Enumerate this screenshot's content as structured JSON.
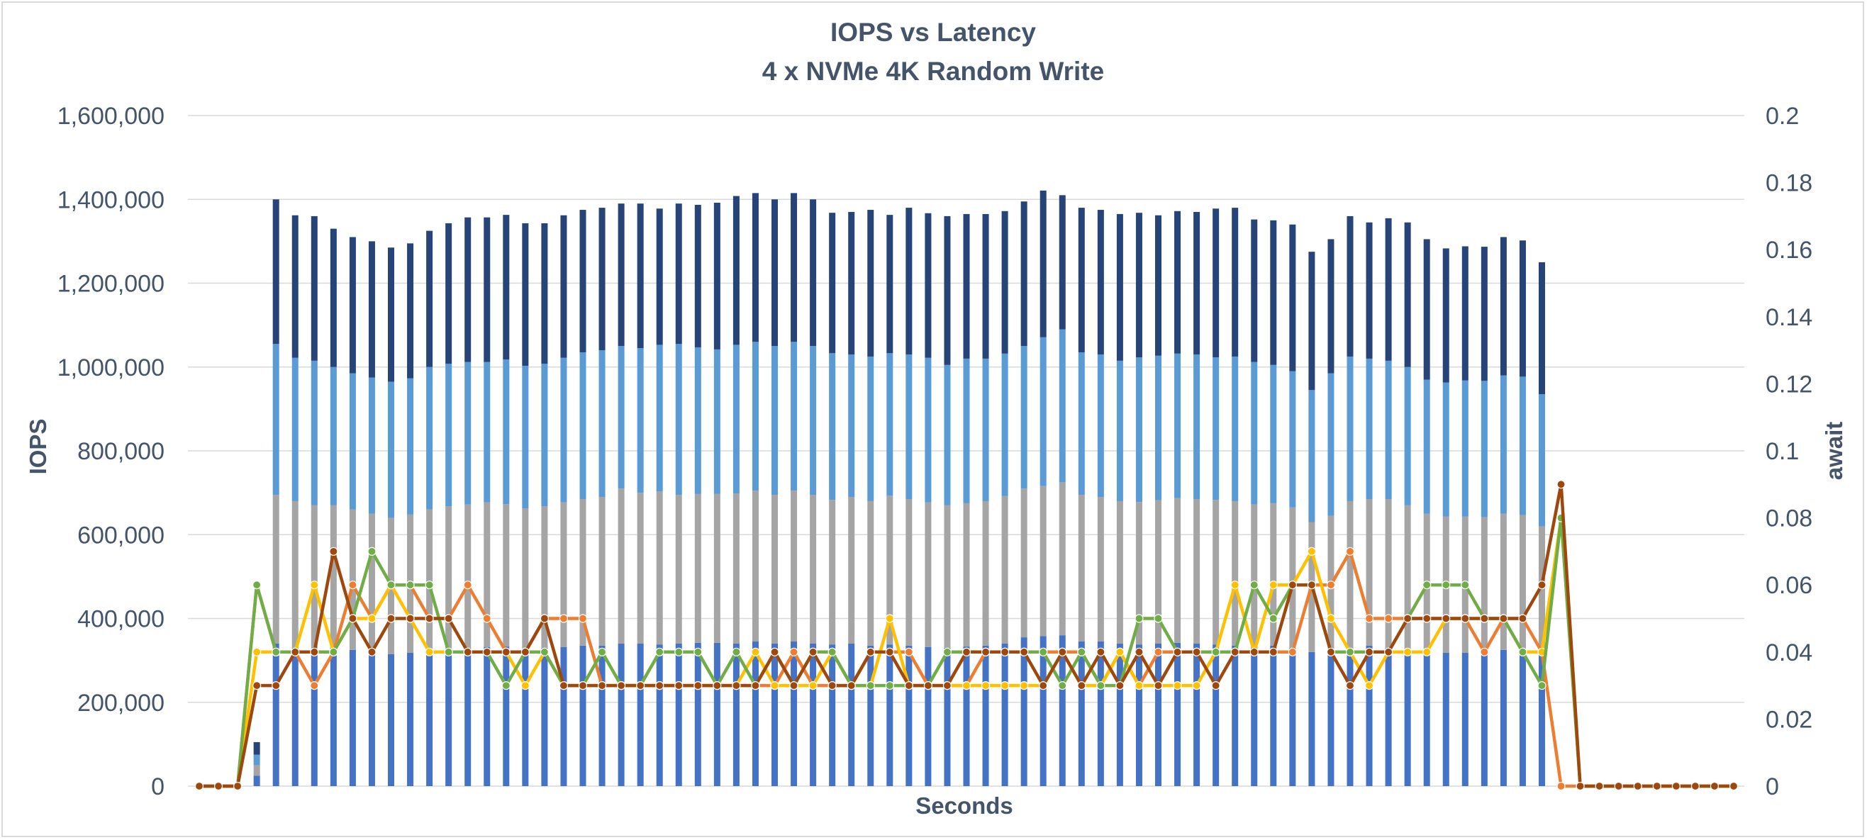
{
  "chart_data": {
    "type": "bar",
    "title": "IOPS vs Latency",
    "subtitle": "4 x NVMe 4K Random Write",
    "xlabel": "Seconds",
    "ylabel": "IOPS",
    "y2label": "await",
    "ylim": [
      0,
      1600000
    ],
    "y2lim": [
      0,
      0.2
    ],
    "yticks": [
      "0",
      "200,000",
      "400,000",
      "600,000",
      "800,000",
      "1,000,000",
      "1,200,000",
      "1,400,000",
      "1,600,000"
    ],
    "y2ticks": [
      "0",
      "0.02",
      "0.04",
      "0.06",
      "0.08",
      "0.1",
      "0.12",
      "0.14",
      "0.16",
      "0.18",
      "0.2"
    ],
    "grid": true,
    "legend": "none",
    "stacked_bars": {
      "series": [
        {
          "color": "#4472c4",
          "values": [
            0,
            0,
            0,
            25000,
            340000,
            330000,
            325000,
            330000,
            325000,
            320000,
            315000,
            318000,
            322000,
            328000,
            330000,
            332000,
            333000,
            328000,
            330000,
            332000,
            335000,
            335000,
            340000,
            340000,
            338000,
            340000,
            342000,
            342000,
            340000,
            345000,
            340000,
            345000,
            340000,
            338000,
            340000,
            335000,
            338000,
            335000,
            332000,
            330000,
            333000,
            335000,
            340000,
            355000,
            358000,
            360000,
            345000,
            345000,
            340000,
            338000,
            340000,
            342000,
            340000,
            338000,
            335000,
            332000,
            335000,
            330000,
            320000,
            315000,
            325000,
            335000,
            330000,
            325000,
            320000,
            318000,
            318000,
            320000,
            325000,
            322000,
            315000,
            0,
            0,
            0,
            0,
            0,
            0,
            0,
            0,
            0,
            0
          ]
        },
        {
          "color": "#a5a5a5",
          "values": [
            0,
            0,
            0,
            25000,
            355000,
            350000,
            345000,
            340000,
            335000,
            330000,
            325000,
            330000,
            338000,
            340000,
            342000,
            345000,
            340000,
            335000,
            338000,
            345000,
            350000,
            355000,
            370000,
            360000,
            365000,
            355000,
            355000,
            355000,
            358000,
            360000,
            355000,
            360000,
            355000,
            345000,
            350000,
            345000,
            355000,
            350000,
            345000,
            340000,
            342000,
            345000,
            352000,
            355000,
            358000,
            365000,
            350000,
            345000,
            340000,
            340000,
            342000,
            345000,
            345000,
            345000,
            345000,
            340000,
            340000,
            335000,
            310000,
            330000,
            355000,
            350000,
            355000,
            345000,
            330000,
            325000,
            325000,
            322000,
            325000,
            325000,
            305000,
            0,
            0,
            0,
            0,
            0,
            0,
            0,
            0,
            0,
            0
          ]
        },
        {
          "color": "#5b9bd5",
          "values": [
            0,
            0,
            0,
            25000,
            360000,
            342000,
            345000,
            330000,
            325000,
            325000,
            325000,
            325000,
            340000,
            340000,
            340000,
            335000,
            345000,
            340000,
            340000,
            345000,
            350000,
            350000,
            340000,
            345000,
            350000,
            360000,
            350000,
            345000,
            355000,
            355000,
            355000,
            355000,
            355000,
            350000,
            340000,
            345000,
            340000,
            345000,
            345000,
            335000,
            345000,
            340000,
            340000,
            340000,
            355000,
            365000,
            340000,
            340000,
            335000,
            345000,
            345000,
            345000,
            345000,
            340000,
            345000,
            340000,
            330000,
            325000,
            315000,
            340000,
            345000,
            335000,
            330000,
            330000,
            320000,
            320000,
            325000,
            325000,
            330000,
            330000,
            315000,
            0,
            0,
            0,
            0,
            0,
            0,
            0,
            0,
            0,
            0
          ]
        },
        {
          "color": "#264478",
          "values": [
            0,
            0,
            0,
            30000,
            345000,
            340000,
            345000,
            330000,
            325000,
            325000,
            320000,
            322000,
            325000,
            335000,
            345000,
            345000,
            345000,
            340000,
            335000,
            340000,
            340000,
            340000,
            340000,
            345000,
            325000,
            335000,
            340000,
            350000,
            355000,
            355000,
            350000,
            355000,
            350000,
            335000,
            340000,
            350000,
            330000,
            350000,
            345000,
            355000,
            345000,
            345000,
            340000,
            345000,
            350000,
            320000,
            345000,
            345000,
            350000,
            345000,
            335000,
            340000,
            340000,
            355000,
            355000,
            340000,
            345000,
            350000,
            330000,
            320000,
            335000,
            325000,
            340000,
            345000,
            335000,
            320000,
            320000,
            320000,
            330000,
            325000,
            315000,
            0,
            0,
            0,
            0,
            0,
            0,
            0,
            0,
            0,
            0
          ]
        }
      ]
    },
    "latency_series": [
      {
        "color": "#ed7d31",
        "values": [
          0,
          0,
          0,
          0.06,
          0.04,
          0.04,
          0.03,
          0.04,
          0.06,
          0.05,
          0.06,
          0.06,
          0.05,
          0.05,
          0.06,
          0.05,
          0.04,
          0.04,
          0.05,
          0.05,
          0.05,
          0.03,
          0.03,
          0.03,
          0.03,
          0.03,
          0.03,
          0.03,
          0.03,
          0.03,
          0.03,
          0.04,
          0.03,
          0.03,
          0.03,
          0.04,
          0.04,
          0.04,
          0.03,
          0.03,
          0.03,
          0.04,
          0.04,
          0.04,
          0.04,
          0.04,
          0.04,
          0.03,
          0.04,
          0.03,
          0.04,
          0.04,
          0.04,
          0.04,
          0.04,
          0.04,
          0.04,
          0.04,
          0.06,
          0.06,
          0.07,
          0.05,
          0.05,
          0.05,
          0.05,
          0.05,
          0.05,
          0.04,
          0.05,
          0.05,
          0.04,
          0,
          0,
          0,
          0,
          0,
          0,
          0,
          0,
          0,
          0
        ]
      },
      {
        "color": "#ffc000",
        "values": [
          0,
          0,
          0,
          0.04,
          0.04,
          0.04,
          0.06,
          0.04,
          0.05,
          0.05,
          0.06,
          0.05,
          0.04,
          0.04,
          0.04,
          0.04,
          0.04,
          0.03,
          0.04,
          0.03,
          0.03,
          0.03,
          0.03,
          0.03,
          0.03,
          0.03,
          0.03,
          0.03,
          0.03,
          0.04,
          0.03,
          0.03,
          0.03,
          0.04,
          0.03,
          0.03,
          0.05,
          0.03,
          0.03,
          0.03,
          0.03,
          0.03,
          0.03,
          0.03,
          0.03,
          0.04,
          0.03,
          0.03,
          0.04,
          0.03,
          0.03,
          0.03,
          0.03,
          0.04,
          0.06,
          0.04,
          0.06,
          0.06,
          0.07,
          0.05,
          0.04,
          0.03,
          0.04,
          0.04,
          0.04,
          0.05,
          0.05,
          0.05,
          0.05,
          0.04,
          0.04,
          0.08,
          0,
          0,
          0,
          0,
          0,
          0,
          0,
          0,
          0
        ]
      },
      {
        "color": "#70ad47",
        "values": [
          0,
          0,
          0,
          0.06,
          0.04,
          0.04,
          0.04,
          0.04,
          0.05,
          0.07,
          0.06,
          0.06,
          0.06,
          0.04,
          0.04,
          0.04,
          0.03,
          0.04,
          0.04,
          0.03,
          0.03,
          0.04,
          0.03,
          0.03,
          0.04,
          0.04,
          0.04,
          0.03,
          0.04,
          0.03,
          0.04,
          0.03,
          0.04,
          0.04,
          0.03,
          0.03,
          0.03,
          0.03,
          0.03,
          0.04,
          0.04,
          0.04,
          0.04,
          0.04,
          0.04,
          0.03,
          0.04,
          0.03,
          0.03,
          0.05,
          0.05,
          0.04,
          0.04,
          0.04,
          0.04,
          0.06,
          0.05,
          0.06,
          0.06,
          0.04,
          0.04,
          0.04,
          0.04,
          0.05,
          0.06,
          0.06,
          0.06,
          0.05,
          0.05,
          0.04,
          0.03,
          0.08,
          0,
          0,
          0,
          0,
          0,
          0,
          0,
          0,
          0
        ]
      },
      {
        "color": "#9e480e",
        "values": [
          0,
          0,
          0,
          0.03,
          0.03,
          0.04,
          0.04,
          0.07,
          0.05,
          0.04,
          0.05,
          0.05,
          0.05,
          0.05,
          0.04,
          0.04,
          0.04,
          0.04,
          0.05,
          0.03,
          0.03,
          0.03,
          0.03,
          0.03,
          0.03,
          0.03,
          0.03,
          0.03,
          0.03,
          0.03,
          0.04,
          0.03,
          0.04,
          0.03,
          0.03,
          0.04,
          0.04,
          0.03,
          0.03,
          0.03,
          0.04,
          0.04,
          0.04,
          0.04,
          0.03,
          0.04,
          0.03,
          0.04,
          0.03,
          0.04,
          0.03,
          0.04,
          0.04,
          0.03,
          0.04,
          0.04,
          0.04,
          0.06,
          0.06,
          0.04,
          0.03,
          0.04,
          0.04,
          0.05,
          0.05,
          0.05,
          0.05,
          0.05,
          0.05,
          0.05,
          0.06,
          0.09,
          0,
          0,
          0,
          0,
          0,
          0,
          0,
          0,
          0
        ]
      }
    ]
  }
}
